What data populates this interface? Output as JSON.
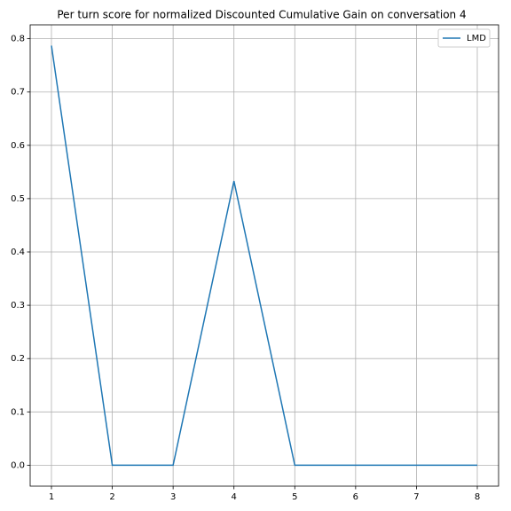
{
  "chart_data": {
    "type": "line",
    "title": "Per turn score for normalized Discounted Cumulative Gain on conversation 4",
    "x": [
      1,
      2,
      3,
      4,
      5,
      6,
      7,
      8
    ],
    "series": [
      {
        "name": "LMD",
        "color": "#1f77b4",
        "values": [
          0.787,
          0,
          0,
          0.533,
          0,
          0,
          0,
          0
        ]
      }
    ],
    "xlim": [
      0.65,
      8.35
    ],
    "xticks": [
      1,
      2,
      3,
      4,
      5,
      6,
      7,
      8
    ],
    "ylim": [
      -0.0393,
      0.826
    ],
    "yticks": [
      {
        "value": 0,
        "label": "0.0"
      },
      0.1,
      0.2,
      0.3,
      0.4,
      0.5,
      0.6,
      0.7,
      0.8
    ],
    "grid": true,
    "legend": "upper right"
  }
}
